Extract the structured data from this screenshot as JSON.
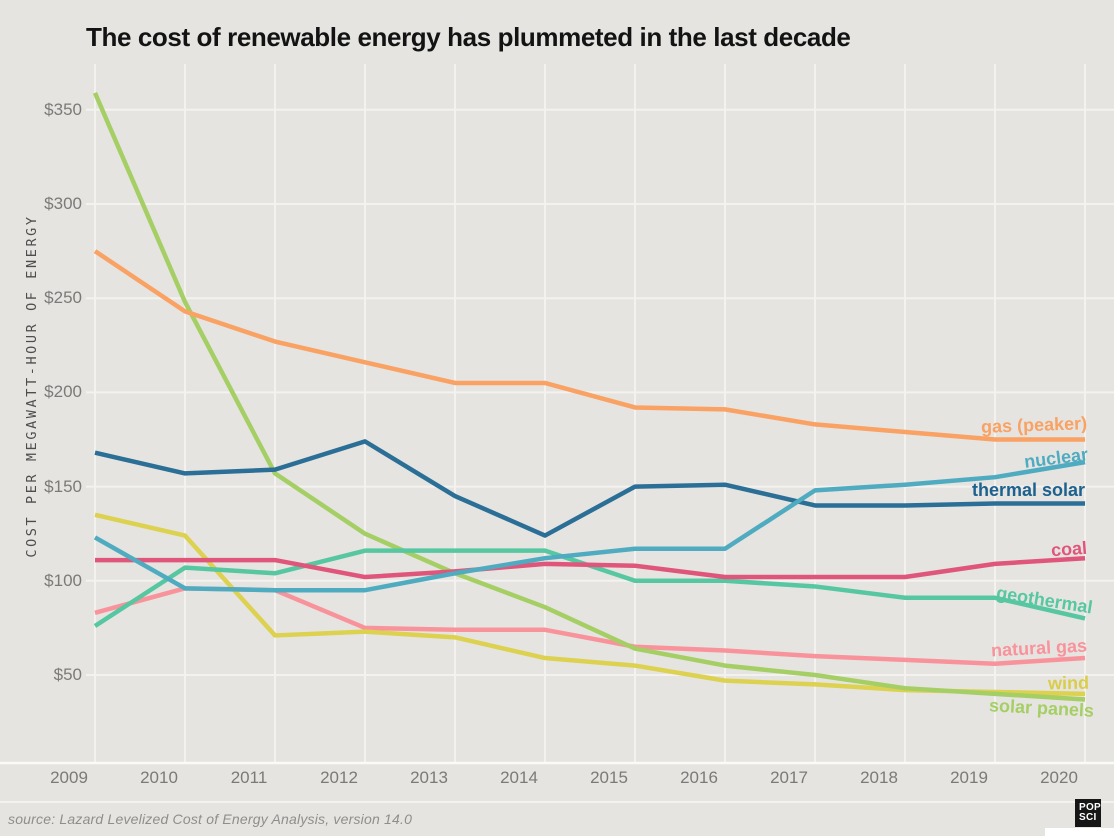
{
  "title": "The cost of renewable energy has plummeted in the last decade",
  "source_note": "source: Lazard Levelized Cost of Energy Analysis, version 14.0",
  "logo": {
    "line1": "POP",
    "line2": "SCI"
  },
  "colors": {
    "background": "#e5e4e1",
    "gridline": "#f3f2ef",
    "axis_line": "#fbfaf8",
    "title_text": "#131313",
    "tick_text": "#7b7a78",
    "axis_title_text": "#4d4d4d",
    "source_text": "#8f8e8c",
    "logo_bg": "#161616"
  },
  "chart_data": {
    "type": "line",
    "title": "The cost of renewable energy has plummeted in the last decade",
    "xlabel": "",
    "ylabel": "COST PER MEGAWATT-HOUR OF ENERGY",
    "units": "$ per megawatt-hour",
    "x": [
      "2009",
      "2010",
      "2011",
      "2012",
      "2013",
      "2014",
      "2015",
      "2016",
      "2017",
      "2018",
      "2019",
      "2020"
    ],
    "y_ticks": [
      {
        "label": "$350",
        "value": 350
      },
      {
        "label": "$300",
        "value": 300
      },
      {
        "label": "$250",
        "value": 250
      },
      {
        "label": "$200",
        "value": 200
      },
      {
        "label": "$150",
        "value": 150
      },
      {
        "label": "$100",
        "value": 100
      },
      {
        "label": "$50",
        "value": 50
      }
    ],
    "ylim": [
      3,
      375
    ],
    "grid": true,
    "legend_position": "inline-right",
    "series": [
      {
        "name": "natural-gas",
        "label": "natural gas",
        "color": "#f9939b",
        "label_color": "#f9939b",
        "values": [
          83,
          96,
          95,
          75,
          74,
          74,
          65,
          63,
          60,
          58,
          56,
          59
        ]
      },
      {
        "name": "wind",
        "label": "wind",
        "color": "#ddd150",
        "label_color": "#d9cd4a",
        "values": [
          135,
          124,
          71,
          73,
          70,
          59,
          55,
          47,
          45,
          42,
          41,
          40
        ]
      },
      {
        "name": "solar-panels",
        "label": "solar panels",
        "color": "#a5cf64",
        "label_color": "#a5cf64",
        "values": [
          359,
          248,
          157,
          125,
          104,
          86,
          64,
          55,
          50,
          43,
          40,
          37
        ]
      },
      {
        "name": "geothermal",
        "label": "geothermal",
        "color": "#57c7a1",
        "label_color": "#57c7a1",
        "values": [
          76,
          107,
          104,
          116,
          116,
          116,
          100,
          100,
          97,
          91,
          91,
          80
        ]
      },
      {
        "name": "coal",
        "label": "coal",
        "color": "#e0567a",
        "label_color": "#e0567a",
        "values": [
          111,
          111,
          111,
          102,
          105,
          109,
          108,
          102,
          102,
          102,
          109,
          112
        ]
      },
      {
        "name": "thermal-solar",
        "label": "thermal solar",
        "color": "#2b6f97",
        "label_color": "#1d618e",
        "values": [
          168,
          157,
          159,
          174,
          145,
          124,
          150,
          151,
          140,
          140,
          141,
          141
        ]
      },
      {
        "name": "nuclear",
        "label": "nuclear",
        "color": "#4fabc0",
        "label_color": "#4fabc0",
        "values": [
          123,
          96,
          95,
          95,
          104,
          112,
          117,
          117,
          148,
          151,
          155,
          163
        ]
      },
      {
        "name": "gas-peaker",
        "label": "gas (peaker)",
        "color": "#f9a263",
        "label_color": "#f9a263",
        "values": [
          275,
          243,
          227,
          216,
          205,
          205,
          192,
          191,
          183,
          179,
          175,
          175
        ]
      }
    ]
  }
}
